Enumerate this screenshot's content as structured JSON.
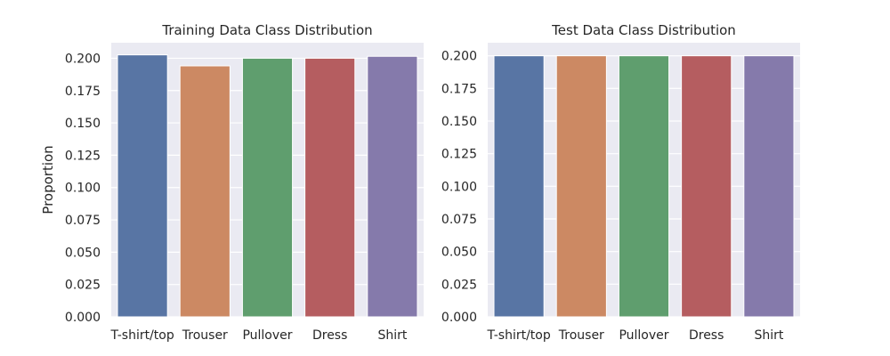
{
  "chart_data": [
    {
      "type": "bar",
      "title": "Training Data Class Distribution",
      "xlabel": "",
      "ylabel": "Proportion",
      "categories": [
        "T-shirt/top",
        "Trouser",
        "Pullover",
        "Dress",
        "Shirt"
      ],
      "values": [
        0.2026,
        0.1941,
        0.2,
        0.2,
        0.2015
      ],
      "ylim": [
        0,
        0.212
      ],
      "yticks": [
        "0.000",
        "0.025",
        "0.050",
        "0.075",
        "0.100",
        "0.125",
        "0.150",
        "0.175",
        "0.200"
      ],
      "grid": true
    },
    {
      "type": "bar",
      "title": "Test Data Class Distribution",
      "xlabel": "",
      "ylabel": "",
      "categories": [
        "T-shirt/top",
        "Trouser",
        "Pullover",
        "Dress",
        "Shirt"
      ],
      "values": [
        0.2,
        0.2,
        0.2,
        0.2,
        0.2
      ],
      "ylim": [
        0,
        0.21
      ],
      "yticks": [
        "0.000",
        "0.025",
        "0.050",
        "0.075",
        "0.100",
        "0.125",
        "0.150",
        "0.175",
        "0.200"
      ],
      "grid": true
    }
  ],
  "colors": {
    "background": "#eaeaf2",
    "grid": "#ffffff",
    "text": "#262626",
    "bars": [
      "#5875a4",
      "#cc8963",
      "#5f9e6e",
      "#b55d60",
      "#857aab"
    ]
  }
}
